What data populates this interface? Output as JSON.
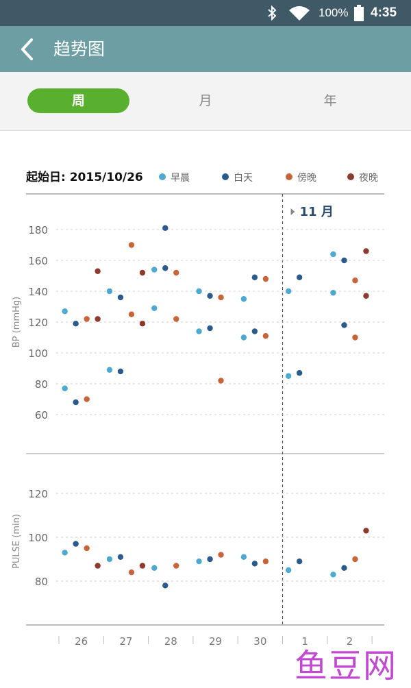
{
  "status_bar": {
    "battery": "100%",
    "time": "4:35",
    "icons": [
      "bluetooth-icon",
      "wifi-icon",
      "battery-icon"
    ]
  },
  "app_bar": {
    "title": "趋势图",
    "back_icon": "chevron-left-icon"
  },
  "tabs": [
    {
      "label": "周",
      "active": true
    },
    {
      "label": "月",
      "active": false
    },
    {
      "label": "年",
      "active": false
    }
  ],
  "colors": {
    "status_bar": "#3f5a66",
    "app_bar": "#6d9ea4",
    "active_tab": "#59b02e",
    "morning": "#4fa8cf",
    "daytime": "#2b5b8c",
    "evening": "#c8643a",
    "night": "#8e3a2e",
    "watermark": "#c24ad0"
  },
  "chart_header": {
    "start_date": "起始日: 2015/10/26"
  },
  "legend": [
    {
      "key": "morning",
      "label": "早晨"
    },
    {
      "key": "daytime",
      "label": "白天"
    },
    {
      "key": "evening",
      "label": "傍晚"
    },
    {
      "key": "night",
      "label": "夜晚"
    }
  ],
  "month_marker": "11 月",
  "watermark": "鱼豆网",
  "chart_data": [
    {
      "type": "scatter",
      "ylabel": "BP (mmHg)",
      "yticks": [
        60,
        80,
        100,
        120,
        140,
        160,
        180
      ],
      "ylim": [
        48,
        190
      ],
      "grid": true,
      "categories": [
        "26",
        "27",
        "28",
        "29",
        "30",
        "1",
        "2"
      ],
      "series": [
        {
          "name": "早晨",
          "key": "morning",
          "points": [
            [
              1,
              127
            ],
            [
              1,
              77
            ],
            [
              2,
              140
            ],
            [
              2,
              89
            ],
            [
              3,
              154
            ],
            [
              3,
              129
            ],
            [
              4,
              140
            ],
            [
              4,
              114
            ],
            [
              5,
              135
            ],
            [
              5,
              110
            ],
            [
              6,
              140
            ],
            [
              6,
              85
            ],
            [
              7,
              164
            ],
            [
              7,
              139
            ]
          ]
        },
        {
          "name": "白天",
          "key": "daytime",
          "points": [
            [
              1,
              119
            ],
            [
              1,
              68
            ],
            [
              2,
              136
            ],
            [
              2,
              88
            ],
            [
              3,
              181
            ],
            [
              3,
              155
            ],
            [
              4,
              137
            ],
            [
              4,
              116
            ],
            [
              5,
              149
            ],
            [
              5,
              114
            ],
            [
              6,
              149
            ],
            [
              6,
              87
            ],
            [
              7,
              160
            ],
            [
              7,
              118
            ]
          ]
        },
        {
          "name": "傍晚",
          "key": "evening",
          "points": [
            [
              1,
              122
            ],
            [
              1,
              70
            ],
            [
              2,
              170
            ],
            [
              2,
              125
            ],
            [
              3,
              152
            ],
            [
              3,
              122
            ],
            [
              4,
              136
            ],
            [
              4,
              82
            ],
            [
              5,
              148
            ],
            [
              5,
              111
            ],
            [
              7,
              147
            ],
            [
              7,
              110
            ]
          ]
        },
        {
          "name": "夜晚",
          "key": "night",
          "points": [
            [
              1,
              153
            ],
            [
              1,
              122
            ],
            [
              2,
              152
            ],
            [
              2,
              119
            ],
            [
              7,
              166
            ],
            [
              7,
              137
            ]
          ]
        }
      ]
    },
    {
      "type": "scatter",
      "ylabel": "PULSE (min)",
      "yticks": [
        80,
        100,
        120
      ],
      "ylim": [
        62,
        130
      ],
      "grid": true,
      "categories": [
        "26",
        "27",
        "28",
        "29",
        "30",
        "1",
        "2"
      ],
      "series": [
        {
          "name": "早晨",
          "key": "morning",
          "points": [
            [
              1,
              93
            ],
            [
              2,
              90
            ],
            [
              3,
              86
            ],
            [
              4,
              89
            ],
            [
              5,
              91
            ],
            [
              6,
              85
            ],
            [
              7,
              83
            ]
          ]
        },
        {
          "name": "白天",
          "key": "daytime",
          "points": [
            [
              1,
              97
            ],
            [
              2,
              91
            ],
            [
              3,
              78
            ],
            [
              4,
              90
            ],
            [
              5,
              88
            ],
            [
              6,
              89
            ],
            [
              7,
              86
            ]
          ]
        },
        {
          "name": "傍晚",
          "key": "evening",
          "points": [
            [
              1,
              95
            ],
            [
              2,
              84
            ],
            [
              3,
              87
            ],
            [
              4,
              92
            ],
            [
              5,
              89
            ],
            [
              7,
              90
            ]
          ]
        },
        {
          "name": "夜晚",
          "key": "night",
          "points": [
            [
              1,
              87
            ],
            [
              2,
              87
            ],
            [
              7,
              103
            ]
          ]
        }
      ]
    }
  ]
}
